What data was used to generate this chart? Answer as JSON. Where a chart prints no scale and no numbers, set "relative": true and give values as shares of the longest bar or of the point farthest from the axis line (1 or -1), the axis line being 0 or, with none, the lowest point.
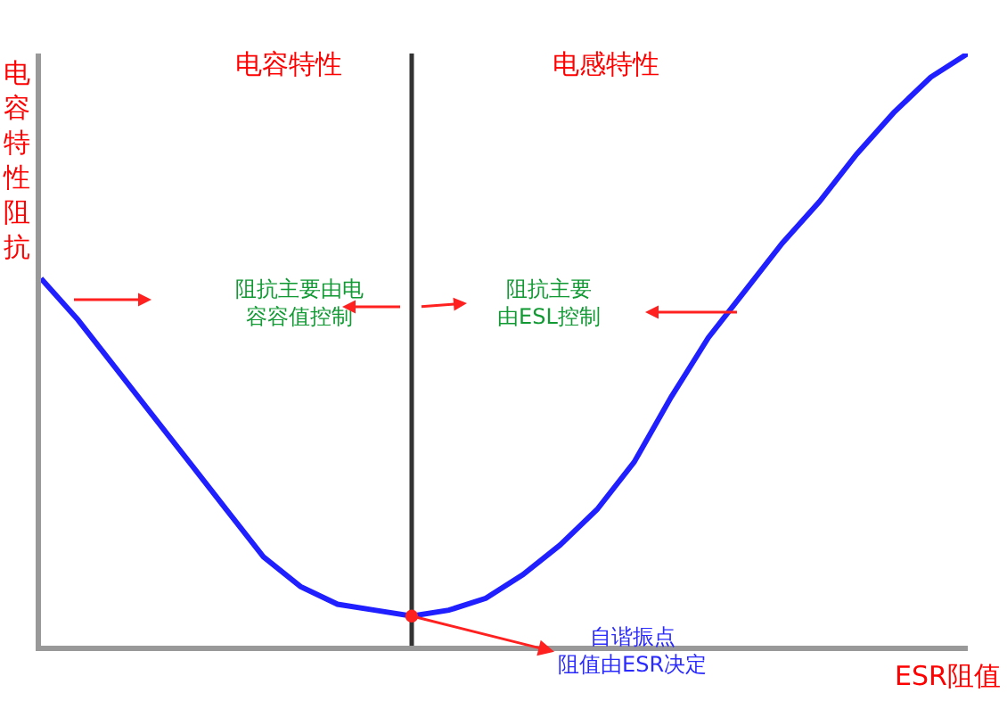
{
  "chart_data": {
    "type": "line",
    "relative": true,
    "ylabel": "电容特性阻抗",
    "xlabel": "ESR阻值",
    "categories": [
      null,
      null,
      null,
      null,
      null,
      null,
      null,
      null,
      null,
      null,
      null,
      null,
      null,
      null,
      null,
      null,
      null,
      null,
      null,
      null,
      null,
      null,
      null,
      null,
      null,
      null
    ],
    "marker": "none",
    "line_style": "solid",
    "series": [
      {
        "color": "#1f1fff",
        "values": [
          0.62,
          0.55,
          0.47,
          0.39,
          0.31,
          0.23,
          0.15,
          0.1,
          0.07,
          0.06,
          0.05,
          0.06,
          0.08,
          0.12,
          0.17,
          0.23,
          0.31,
          0.42,
          0.52,
          0.6,
          0.68,
          0.75,
          0.83,
          0.9,
          0.96,
          1.0
        ]
      }
    ],
    "annotations": [
      "电容特性",
      "电感特性",
      "阻抗主要由电容容值控制",
      "阻抗主要由ESL控制",
      "自谐振点阻值由ESR决定"
    ]
  }
}
